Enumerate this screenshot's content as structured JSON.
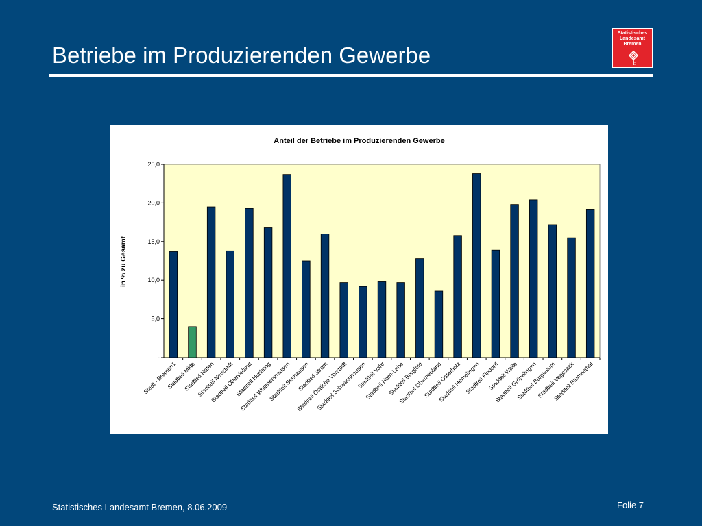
{
  "slide": {
    "title": "Betriebe im Produzierenden Gewerbe",
    "logo_lines": [
      "Statistisches",
      "Landesamt",
      "Bremen"
    ],
    "footer_left": "Statistisches Landesamt Bremen, 8.06.2009",
    "footer_right": "Folie 7"
  },
  "colors": {
    "background": "#02477b",
    "plot_area": "#ffffcc",
    "bar": "#003366",
    "bar_highlight": "#339966",
    "logo": "#e3242b"
  },
  "chart_data": {
    "type": "bar",
    "title": "Anteil der Betriebe im Produzierenden Gewerbe",
    "xlabel": "",
    "ylabel": "in % zu Gesamt",
    "ylim": [
      0,
      25
    ],
    "yticks": [
      "-",
      "5,0",
      "10,0",
      "15,0",
      "20,0",
      "25,0"
    ],
    "grid": false,
    "legend": "none",
    "highlight_index": 1,
    "categories": [
      "Stadt - Bremen1",
      "Stadtteil Mitte",
      "Stadtteil Häfen",
      "Stadtteil Neustadt",
      "Stadtteil Obervieland",
      "Stadtteil Huchting",
      "Stadtteil Woltmershausen",
      "Stadtteil Seehausen",
      "Stadtteil Strom",
      "Stadtteil Östliche Vorstadt",
      "Stadtteil Schwachhausen",
      "Stadtteil Vahr",
      "Stadtteil Horn-Lehe",
      "Stadtteil Borgfeld",
      "Stadtteil Oberneuland",
      "Stadtteil Osterholz",
      "Stadtteil Hemelingen",
      "Stadtteil Findorff",
      "Stadtteil Walle",
      "Stadtteil Gröpelingen",
      "Stadtteil Burglesum",
      "Stadtteil Vegesack",
      "Stadtteil Blumenthal"
    ],
    "values": [
      13.7,
      4.0,
      19.5,
      13.8,
      19.3,
      16.8,
      23.7,
      12.5,
      16.0,
      9.7,
      9.2,
      9.8,
      9.7,
      12.8,
      8.6,
      15.8,
      23.8,
      13.9,
      19.8,
      20.4,
      17.2,
      15.5,
      19.2
    ]
  }
}
